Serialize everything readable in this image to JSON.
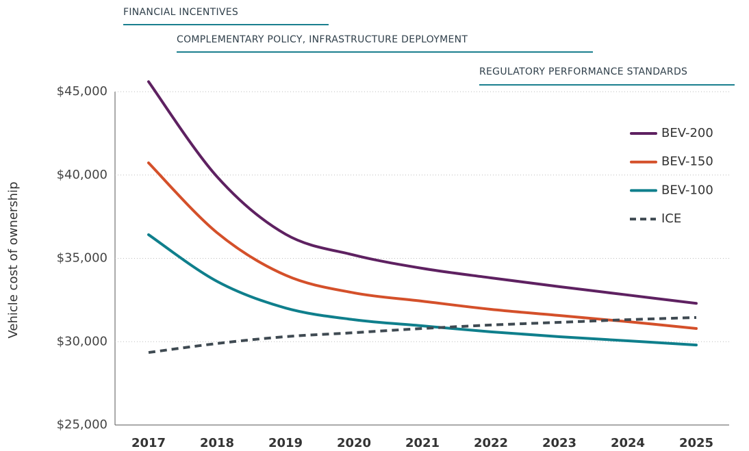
{
  "chart_data": {
    "type": "line",
    "annotations": [
      "FINANCIAL INCENTIVES",
      "COMPLEMENTARY POLICY, INFRASTRUCTURE DEPLOYMENT",
      "REGULATORY PERFORMANCE STANDARDS"
    ],
    "ylabel": "Vehicle cost of ownership",
    "categories": [
      "2017",
      "2018",
      "2019",
      "2020",
      "2021",
      "2022",
      "2023",
      "2024",
      "2025"
    ],
    "series": [
      {
        "name": "BEV-200",
        "color": "#5e2161",
        "values": [
          45600,
          39900,
          36450,
          35200,
          34400,
          33830,
          33300,
          32800,
          32300
        ]
      },
      {
        "name": "BEV-150",
        "color": "#d4502a",
        "values": [
          40730,
          36540,
          33990,
          32930,
          32430,
          31940,
          31570,
          31200,
          30790
        ]
      },
      {
        "name": "BEV-100",
        "color": "#0f7f8c",
        "values": [
          36420,
          33620,
          32020,
          31320,
          30950,
          30590,
          30300,
          30050,
          29800
        ]
      },
      {
        "name": "ICE",
        "color": "#3f4a52",
        "dashed": true,
        "values": [
          29350,
          29890,
          30300,
          30540,
          30790,
          31000,
          31160,
          31320,
          31450
        ]
      }
    ],
    "ylim": [
      25000,
      45000
    ],
    "yticks": [
      {
        "value": 25000,
        "label": "$25,000"
      },
      {
        "value": 30000,
        "label": "$30,000"
      },
      {
        "value": 35000,
        "label": "$35,000"
      },
      {
        "value": 40000,
        "label": "$40,000"
      },
      {
        "value": 45000,
        "label": "$45,000"
      }
    ],
    "grid": true,
    "legend": "upper right"
  }
}
